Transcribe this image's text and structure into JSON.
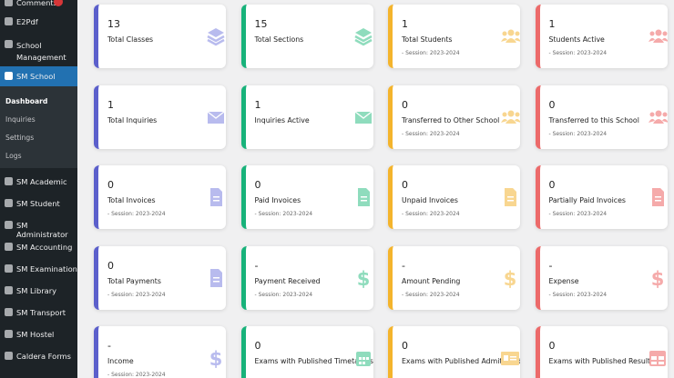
{
  "sidebar": {
    "items": [
      "Comments",
      "E2Pdf",
      "School Management",
      "SM School",
      "SM Academic",
      "SM Student",
      "SM Administrator",
      "SM Accounting",
      "SM Examination",
      "SM Library",
      "SM Transport",
      "SM Hostel",
      "Caldera Forms"
    ],
    "submenu": [
      "Dashboard",
      "Inquiries",
      "Settings",
      "Logs"
    ]
  },
  "cards": [
    {
      "value": "13",
      "label": "Total Classes"
    },
    {
      "value": "15",
      "label": "Total Sections"
    },
    {
      "value": "1",
      "label": "Total Students",
      "session": "- Session: 2023-2024"
    },
    {
      "value": "1",
      "label": "Students Active",
      "session": "- Session: 2023-2024"
    },
    {
      "value": "1",
      "label": "Total Inquiries"
    },
    {
      "value": "1",
      "label": "Inquiries Active"
    },
    {
      "value": "0",
      "label": "Transferred to Other School",
      "session": "- Session: 2023-2024"
    },
    {
      "value": "0",
      "label": "Transferred to this School",
      "session": "- Session: 2023-2024"
    },
    {
      "value": "0",
      "label": "Total Invoices",
      "session": "- Session: 2023-2024"
    },
    {
      "value": "0",
      "label": "Paid Invoices",
      "session": "- Session: 2023-2024"
    },
    {
      "value": "0",
      "label": "Unpaid Invoices",
      "session": "- Session: 2023-2024"
    },
    {
      "value": "0",
      "label": "Partially Paid Invoices",
      "session": "- Session: 2023-2024"
    },
    {
      "value": "0",
      "label": "Total Payments",
      "session": "- Session: 2023-2024"
    },
    {
      "value": "-",
      "label": "Payment Received",
      "session": "- Session: 2023-2024"
    },
    {
      "value": "-",
      "label": "Amount Pending",
      "session": "- Session: 2023-2024"
    },
    {
      "value": "-",
      "label": "Expense",
      "session": "- Session: 2023-2024"
    },
    {
      "value": "-",
      "label": "Income",
      "session": "- Session: 2023-2024"
    },
    {
      "value": "0",
      "label": "Exams with Published Timetables"
    },
    {
      "value": "0",
      "label": "Exams with Published Admit Cards"
    },
    {
      "value": "0",
      "label": "Exams with Published Results"
    }
  ]
}
